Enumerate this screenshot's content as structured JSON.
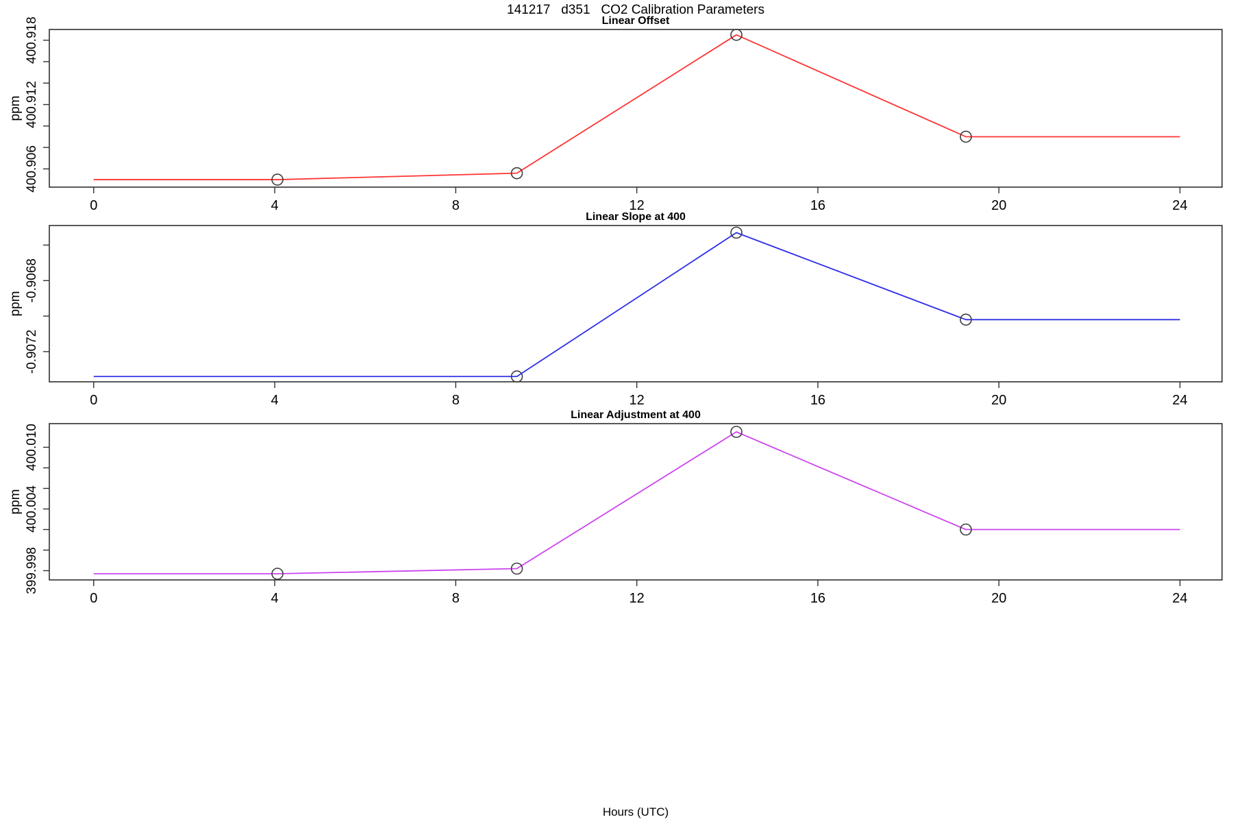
{
  "page": {
    "main_title": "141217   d351   CO2 Calibration Parameters",
    "x_axis_title": "Hours (UTC)"
  },
  "colors": {
    "offset_line": "#FF3333",
    "slope_line": "#2E2EE8",
    "adjustment_line": "#CC44EE",
    "marker_stroke": "#3C3C3C",
    "axis_stroke": "#2F2F2F"
  },
  "chart_data": [
    {
      "type": "line",
      "title": "Linear Offset",
      "ylabel": "ppm",
      "color_key": "offset_line",
      "x": [
        0,
        4.06,
        9.35,
        14.2,
        19.27,
        24
      ],
      "y": [
        400.905,
        400.905,
        400.9056,
        400.9185,
        400.909,
        400.909
      ],
      "marker_indices": [
        1,
        2,
        3,
        4
      ],
      "xlim": [
        -0.98,
        24.93
      ],
      "ylim": [
        400.9043,
        400.919
      ],
      "xticks": [
        0,
        4,
        8,
        12,
        16,
        20,
        24
      ],
      "yticks": [
        400.906,
        400.908,
        400.91,
        400.912,
        400.914,
        400.916,
        400.918
      ],
      "ytick_labels": [
        "400.906",
        "",
        "",
        "400.912",
        "",
        "",
        "400.918"
      ],
      "grid": false,
      "legend": null
    },
    {
      "type": "line",
      "title": "Linear Slope at 400",
      "ylabel": "ppm",
      "color_key": "slope_line",
      "x": [
        0,
        9.35,
        14.2,
        19.27,
        24
      ],
      "y": [
        -0.90734,
        -0.90734,
        -0.90653,
        -0.90702,
        -0.90702
      ],
      "marker_indices": [
        1,
        2,
        3
      ],
      "xlim": [
        -0.98,
        24.93
      ],
      "ylim": [
        -0.90737,
        -0.90649
      ],
      "xticks": [
        0,
        4,
        8,
        12,
        16,
        20,
        24
      ],
      "yticks": [
        -0.9072,
        -0.907,
        -0.9068,
        -0.9066
      ],
      "ytick_labels": [
        "-0.9072",
        "",
        "-0.9068",
        ""
      ],
      "grid": false,
      "legend": null
    },
    {
      "type": "line",
      "title": "Linear Adjustment at 400",
      "ylabel": "ppm",
      "color_key": "adjustment_line",
      "x": [
        0,
        4.06,
        9.35,
        14.2,
        19.27,
        24
      ],
      "y": [
        399.9977,
        399.9977,
        399.9982,
        400.0115,
        400.002,
        400.002
      ],
      "marker_indices": [
        1,
        2,
        3,
        4
      ],
      "xlim": [
        -0.98,
        24.93
      ],
      "ylim": [
        399.9971,
        400.0123
      ],
      "xticks": [
        0,
        4,
        8,
        12,
        16,
        20,
        24
      ],
      "yticks": [
        399.998,
        400.0,
        400.002,
        400.004,
        400.006,
        400.008,
        400.01
      ],
      "ytick_labels": [
        "399.998",
        "",
        "",
        "400.004",
        "",
        "",
        "400.010"
      ],
      "grid": false,
      "legend": null
    }
  ]
}
